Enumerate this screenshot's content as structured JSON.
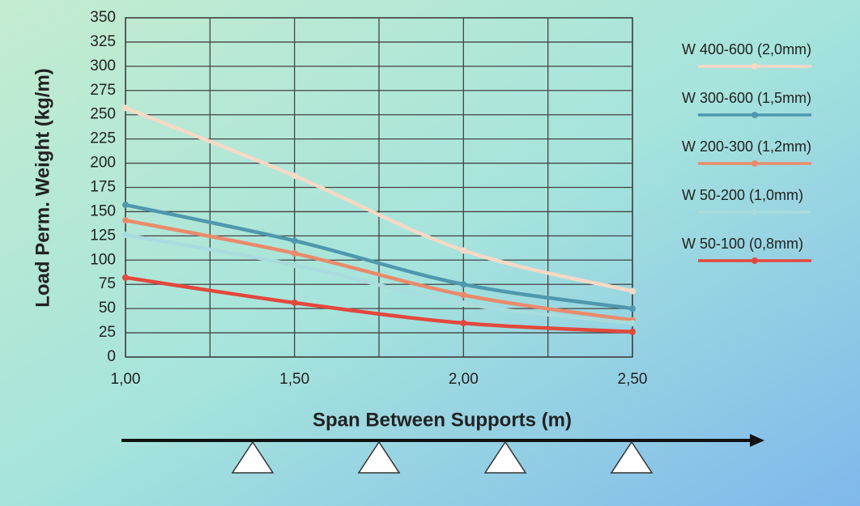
{
  "chart_data": {
    "type": "line",
    "y_label": "Load Perm. Weight (kg/m)",
    "x_label": "Span Between Supports (m)",
    "x": [
      1.0,
      1.5,
      2.0,
      2.5
    ],
    "series": [
      {
        "name": "W 400-600 (2,0mm)",
        "color": "#f7d9c6",
        "values": [
          257,
          187,
          110,
          68
        ]
      },
      {
        "name": "W 300-600 (1,5mm)",
        "color": "#4f98ad",
        "values": [
          157,
          120,
          75,
          50
        ]
      },
      {
        "name": "W 200-300 (1,2mm)",
        "color": "#e98b6b",
        "values": [
          141,
          107,
          64,
          38
        ]
      },
      {
        "name": "W 50-200 (1,0mm)",
        "color": "#a9dcdc",
        "values": [
          126,
          95,
          55,
          35
        ]
      },
      {
        "name": "W 50-100 (0,8mm)",
        "color": "#e2483b",
        "values": [
          82,
          56,
          35,
          26
        ]
      }
    ],
    "xlim": [
      1.0,
      2.5
    ],
    "xticks": [
      {
        "value": 1.0,
        "label": "1,00"
      },
      {
        "value": 1.5,
        "label": "1,50"
      },
      {
        "value": 2.0,
        "label": "2,00"
      },
      {
        "value": 2.5,
        "label": "2,50"
      }
    ],
    "ylim": [
      0,
      350
    ],
    "yticks": [
      0,
      25,
      50,
      75,
      100,
      125,
      150,
      175,
      200,
      225,
      250,
      275,
      300,
      325,
      350
    ],
    "grid": true
  }
}
